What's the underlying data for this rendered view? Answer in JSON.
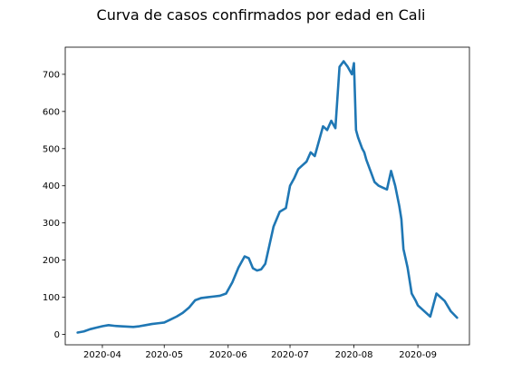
{
  "chart_data": {
    "type": "line",
    "title": "Curva de casos confirmados por edad en Cali",
    "xlabel": "",
    "ylabel": "",
    "x_tick_labels": [
      "2020-04",
      "2020-05",
      "2020-06",
      "2020-07",
      "2020-08",
      "2020-09"
    ],
    "x_tick_dates": [
      "2020-04-01",
      "2020-05-01",
      "2020-06-01",
      "2020-07-01",
      "2020-08-01",
      "2020-09-01"
    ],
    "xlim": [
      "2020-03-14",
      "2020-09-26"
    ],
    "y_ticks": [
      0,
      100,
      200,
      300,
      400,
      500,
      600,
      700
    ],
    "ylim": [
      -28,
      773
    ],
    "grid": false,
    "line_color": "#1f77b4",
    "series": [
      {
        "x": [
          "2020-03-20",
          "2020-03-23",
          "2020-03-26",
          "2020-03-29",
          "2020-04-01",
          "2020-04-04",
          "2020-04-07",
          "2020-04-10",
          "2020-04-13",
          "2020-04-16",
          "2020-04-19",
          "2020-04-22",
          "2020-04-25",
          "2020-04-28",
          "2020-05-01",
          "2020-05-04",
          "2020-05-07",
          "2020-05-10",
          "2020-05-13",
          "2020-05-16",
          "2020-05-19",
          "2020-05-22",
          "2020-05-25",
          "2020-05-28",
          "2020-05-31",
          "2020-06-03",
          "2020-06-06",
          "2020-06-09",
          "2020-06-11",
          "2020-06-13",
          "2020-06-15",
          "2020-06-17",
          "2020-06-19",
          "2020-06-21",
          "2020-06-23",
          "2020-06-26",
          "2020-06-29",
          "2020-07-01",
          "2020-07-03",
          "2020-07-05",
          "2020-07-07",
          "2020-07-09",
          "2020-07-11",
          "2020-07-13",
          "2020-07-15",
          "2020-07-17",
          "2020-07-19",
          "2020-07-21",
          "2020-07-23",
          "2020-07-25",
          "2020-07-27",
          "2020-07-29",
          "2020-07-31",
          "2020-08-01",
          "2020-08-02",
          "2020-08-03",
          "2020-08-05",
          "2020-08-06",
          "2020-08-07",
          "2020-08-09",
          "2020-08-11",
          "2020-08-13",
          "2020-08-15",
          "2020-08-17",
          "2020-08-19",
          "2020-08-21",
          "2020-08-23",
          "2020-08-24",
          "2020-08-25",
          "2020-08-27",
          "2020-08-29",
          "2020-08-31",
          "2020-09-01",
          "2020-09-03",
          "2020-09-05",
          "2020-09-07",
          "2020-09-10",
          "2020-09-14",
          "2020-09-17",
          "2020-09-20"
        ],
        "values": [
          5,
          8,
          14,
          18,
          22,
          25,
          23,
          22,
          21,
          20,
          22,
          25,
          28,
          30,
          32,
          40,
          48,
          58,
          72,
          92,
          98,
          100,
          102,
          104,
          110,
          140,
          180,
          210,
          205,
          178,
          172,
          175,
          190,
          240,
          290,
          330,
          340,
          400,
          420,
          445,
          455,
          465,
          490,
          480,
          520,
          560,
          550,
          575,
          555,
          720,
          735,
          720,
          700,
          730,
          550,
          530,
          500,
          490,
          470,
          440,
          410,
          400,
          395,
          390,
          440,
          400,
          345,
          310,
          230,
          180,
          110,
          90,
          78,
          68,
          58,
          48,
          110,
          90,
          62,
          45
        ]
      }
    ]
  }
}
